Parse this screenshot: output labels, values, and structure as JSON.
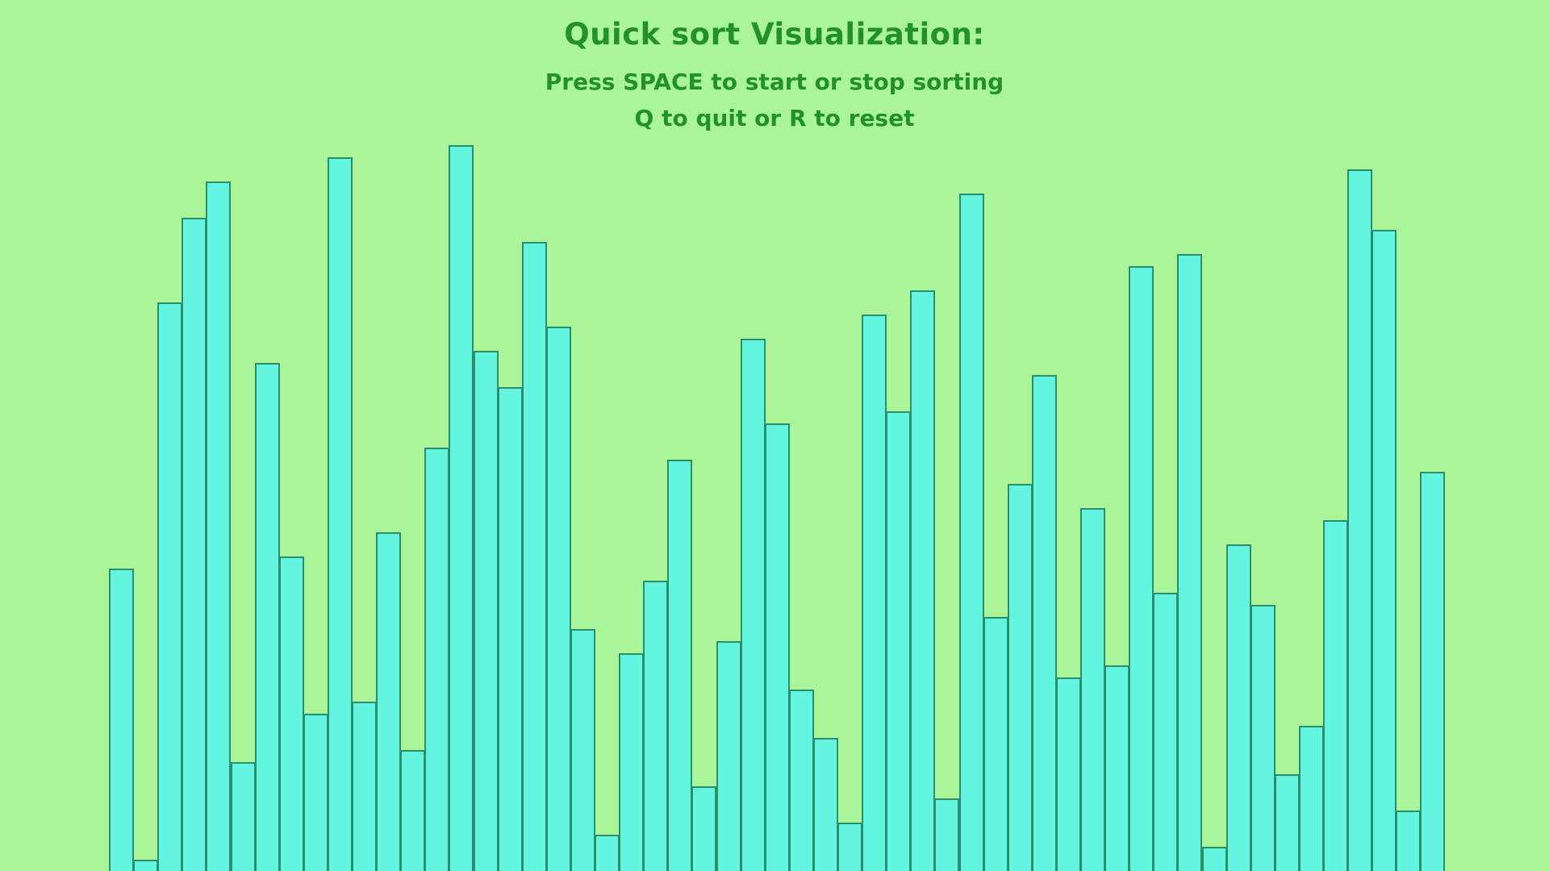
{
  "window": {
    "title": "Quick sort Visualization:",
    "instructions": [
      "Press SPACE to start or stop sorting",
      "Q to quit or R to reset"
    ]
  },
  "colors": {
    "background": "#aaf59a",
    "text": "#23912a",
    "bar_fill": "#63f5df",
    "bar_border": "#2b8f6b"
  },
  "chart_data": {
    "type": "bar",
    "values": [
      375,
      14,
      705,
      810,
      855,
      135,
      630,
      390,
      195,
      885,
      210,
      420,
      150,
      525,
      900,
      645,
      600,
      780,
      675,
      300,
      45,
      270,
      360,
      510,
      105,
      285,
      660,
      555,
      225,
      165,
      60,
      690,
      570,
      720,
      90,
      840,
      315,
      480,
      615,
      240,
      450,
      255,
      750,
      345,
      765,
      30,
      405,
      330,
      120,
      180,
      435,
      870,
      795,
      75,
      495
    ],
    "ylim": [
      0,
      1080
    ],
    "grid": false
  }
}
